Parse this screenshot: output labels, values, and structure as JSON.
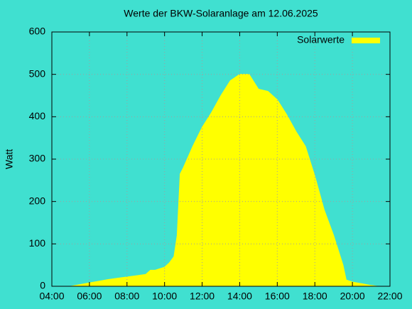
{
  "chart_data": {
    "type": "area",
    "title": "Werte der BKW-Solaranlage am 12.06.2025",
    "y_label": "Watt",
    "x": [
      5,
      5.5,
      6,
      6.5,
      7,
      7.5,
      8,
      8.5,
      9,
      9.25,
      9.5,
      10,
      10.25,
      10.5,
      10.67,
      10.83,
      11,
      11.5,
      12,
      12.5,
      13,
      13.5,
      14,
      14.5,
      15,
      15.5,
      16,
      16.5,
      17,
      17.5,
      18,
      18.5,
      19,
      19.5,
      19.67,
      20,
      20.5,
      21,
      21.33
    ],
    "series": [
      {
        "name": "Solarwerte",
        "color": "#ffff00",
        "values": [
          0,
          4,
          8,
          12,
          16,
          19,
          22,
          25,
          28,
          38,
          38,
          45,
          55,
          70,
          120,
          265,
          280,
          330,
          375,
          410,
          450,
          485,
          500,
          500,
          465,
          460,
          440,
          405,
          365,
          330,
          260,
          180,
          120,
          50,
          15,
          10,
          6,
          2,
          0
        ]
      }
    ],
    "xlim": [
      4,
      22
    ],
    "xticks": [
      {
        "value": 4,
        "label": "04:00"
      },
      {
        "value": 6,
        "label": "06:00"
      },
      {
        "value": 8,
        "label": "08:00"
      },
      {
        "value": 10,
        "label": "10:00"
      },
      {
        "value": 12,
        "label": "12:00"
      },
      {
        "value": 14,
        "label": "14:00"
      },
      {
        "value": 16,
        "label": "16:00"
      },
      {
        "value": 18,
        "label": "18:00"
      },
      {
        "value": 20,
        "label": "20:00"
      },
      {
        "value": 22,
        "label": "22:00"
      }
    ],
    "ylim": [
      0,
      600
    ],
    "yticks": [
      0,
      100,
      200,
      300,
      400,
      500,
      600
    ],
    "grid": true,
    "legend": "top-right"
  }
}
